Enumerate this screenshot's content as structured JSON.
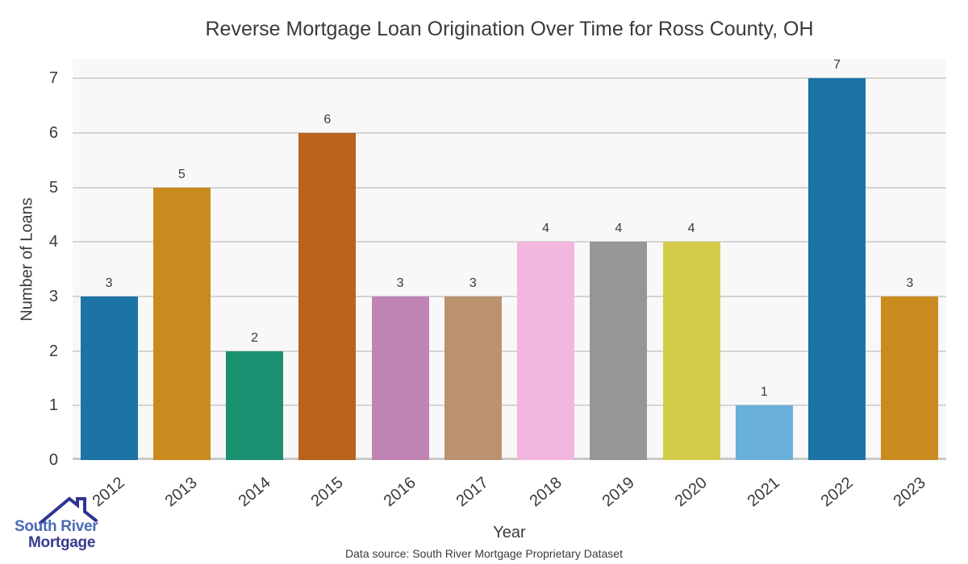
{
  "chart_data": {
    "type": "bar",
    "title": "Reverse Mortgage Loan Origination Over Time for Ross County, OH",
    "xlabel": "Year",
    "ylabel": "Number of Loans",
    "categories": [
      "2012",
      "2013",
      "2014",
      "2015",
      "2016",
      "2017",
      "2018",
      "2019",
      "2020",
      "2021",
      "2022",
      "2023"
    ],
    "values": [
      3,
      5,
      2,
      6,
      3,
      3,
      4,
      4,
      4,
      1,
      7,
      3
    ],
    "bar_colors": [
      "#1c73a6",
      "#c98a1e",
      "#1b9070",
      "#b9631d",
      "#c084b4",
      "#bb9270",
      "#f2b7de",
      "#969696",
      "#d3cc4b",
      "#68b0da",
      "#1c73a6",
      "#c98a1e"
    ],
    "yticks": [
      0,
      1,
      2,
      3,
      4,
      5,
      6,
      7
    ],
    "ylim": [
      0,
      7.36
    ],
    "grid": "horizontal",
    "legend": "none",
    "plot_bg": "#f8f8f8",
    "grid_color": "#d4d4d4",
    "axis_line_color": "#c9c9c9",
    "label_color": "#3a3a3a"
  },
  "footer": {
    "source": "Data source: South River Mortgage Proprietary Dataset"
  },
  "logo": {
    "line1": "South River",
    "line2": "Mortgage",
    "line1_color": "#4a6ab5",
    "line2_color": "#383c8e",
    "roof_color": "#2f3590"
  }
}
